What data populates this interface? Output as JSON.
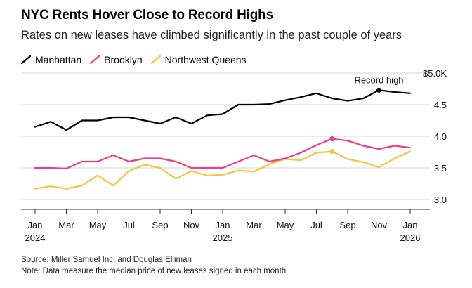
{
  "title": "NYC Rents Hover Close to Record Highs",
  "subtitle": "Rates on new leases have climbed significantly in the past couple of years",
  "source": "Source: Miller Samuel Inc. and Douglas Elliman",
  "note": "Note: Data measure the median price of new leases signed in each month",
  "chart_data": {
    "type": "line",
    "title": "NYC Rents Hover Close to Record Highs",
    "subtitle": "Rates on new leases have climbed significantly in the past couple of years",
    "xlabel": "",
    "ylabel": "",
    "ylim": [
      2.8,
      5.1
    ],
    "xlim": [
      "2024-01",
      "2026-01"
    ],
    "y_ticks": [
      {
        "value": 3.0,
        "label": "3.0"
      },
      {
        "value": 3.5,
        "label": "3.5"
      },
      {
        "value": 4.0,
        "label": "4.0"
      },
      {
        "value": 4.5,
        "label": "4.5"
      },
      {
        "value": 5.0,
        "label": "$5.0K"
      }
    ],
    "x_ticks": [
      {
        "month": "2024-01",
        "label": "Jan",
        "year": "2024"
      },
      {
        "month": "2024-03",
        "label": "Mar",
        "year": ""
      },
      {
        "month": "2024-05",
        "label": "May",
        "year": ""
      },
      {
        "month": "2024-07",
        "label": "Jul",
        "year": ""
      },
      {
        "month": "2024-09",
        "label": "Sep",
        "year": ""
      },
      {
        "month": "2024-11",
        "label": "Nov",
        "year": ""
      },
      {
        "month": "2025-01",
        "label": "Jan",
        "year": "2025"
      },
      {
        "month": "2025-03",
        "label": "Mar",
        "year": ""
      },
      {
        "month": "2025-05",
        "label": "May",
        "year": ""
      },
      {
        "month": "2025-07",
        "label": "Jul",
        "year": ""
      },
      {
        "month": "2025-09",
        "label": "Sep",
        "year": ""
      },
      {
        "month": "2025-11",
        "label": "Nov",
        "year": ""
      },
      {
        "month": "2026-01",
        "label": "Jan",
        "year": "2026"
      }
    ],
    "x": [
      "2024-01",
      "2024-02",
      "2024-03",
      "2024-04",
      "2024-05",
      "2024-06",
      "2024-07",
      "2024-08",
      "2024-09",
      "2024-10",
      "2024-11",
      "2024-12",
      "2025-01",
      "2025-02",
      "2025-03",
      "2025-04",
      "2025-05",
      "2025-06",
      "2025-07",
      "2025-08",
      "2025-09",
      "2025-10",
      "2025-11",
      "2025-12",
      "2026-01"
    ],
    "grid": true,
    "legend_position": "top-left",
    "series": [
      {
        "name": "Manhattan",
        "color": "#000000",
        "values": [
          4.15,
          4.23,
          4.1,
          4.25,
          4.25,
          4.3,
          4.3,
          4.25,
          4.2,
          4.3,
          4.2,
          4.33,
          4.35,
          4.5,
          4.5,
          4.51,
          4.57,
          4.62,
          4.68,
          4.6,
          4.56,
          4.6,
          4.73,
          4.7,
          4.68
        ]
      },
      {
        "name": "Brooklyn",
        "color": "#e83e8c",
        "values": [
          3.5,
          3.5,
          3.49,
          3.6,
          3.6,
          3.7,
          3.6,
          3.65,
          3.65,
          3.6,
          3.5,
          3.5,
          3.5,
          3.6,
          3.7,
          3.6,
          3.65,
          3.74,
          3.86,
          3.96,
          3.93,
          3.85,
          3.8,
          3.85,
          3.82
        ]
      },
      {
        "name": "Northwest Queens",
        "color": "#f2c53d",
        "values": [
          3.17,
          3.21,
          3.17,
          3.22,
          3.38,
          3.22,
          3.45,
          3.55,
          3.5,
          3.33,
          3.45,
          3.38,
          3.39,
          3.46,
          3.44,
          3.56,
          3.64,
          3.62,
          3.74,
          3.76,
          3.64,
          3.59,
          3.51,
          3.65,
          3.76
        ]
      }
    ],
    "annotations": [
      {
        "text": "Record high",
        "series": "Manhattan",
        "month": "2025-11"
      }
    ],
    "markers": [
      {
        "series": "Manhattan",
        "month": "2025-11"
      },
      {
        "series": "Brooklyn",
        "month": "2025-08"
      },
      {
        "series": "Northwest Queens",
        "month": "2025-08"
      }
    ]
  }
}
